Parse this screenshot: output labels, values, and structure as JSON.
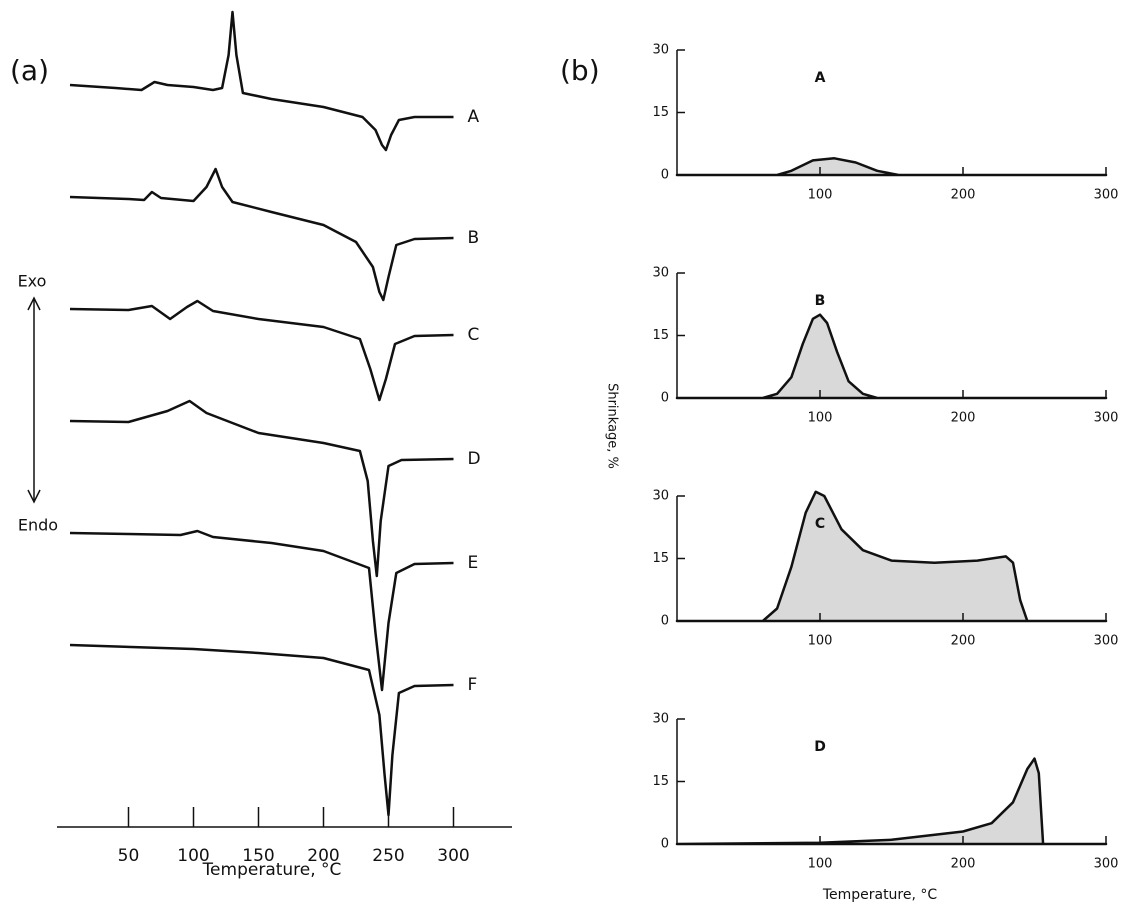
{
  "chart_data": [
    {
      "type": "line",
      "label": "(a)",
      "xlabel": "Temperature, °C",
      "xlim": [
        -5,
        345
      ],
      "xticks": [
        50,
        100,
        150,
        200,
        250,
        300
      ],
      "annotations": [
        "Exo",
        "Endo"
      ],
      "color": "#111111",
      "series": [
        {
          "name": "A",
          "x": [
            5,
            40,
            60,
            70,
            80,
            100,
            115,
            122,
            127,
            130,
            133,
            138,
            160,
            200,
            230,
            240,
            245,
            248,
            252,
            258,
            270,
            300
          ],
          "values": [
            0,
            -3,
            -5,
            3,
            0,
            -2,
            -5,
            -3,
            30,
            73,
            30,
            -8,
            -14,
            -22,
            -32,
            -45,
            -60,
            -65,
            -50,
            -35,
            -32,
            -32
          ]
        },
        {
          "name": "B",
          "x": [
            5,
            50,
            62,
            68,
            75,
            100,
            110,
            117,
            122,
            130,
            160,
            200,
            225,
            238,
            243,
            246,
            250,
            256,
            270,
            300
          ],
          "values": [
            0,
            -2,
            -3,
            5,
            -1,
            -4,
            10,
            28,
            10,
            -5,
            -15,
            -28,
            -45,
            -70,
            -95,
            -103,
            -80,
            -48,
            -42,
            -41
          ]
        },
        {
          "name": "C",
          "x": [
            5,
            50,
            68,
            82,
            95,
            103,
            115,
            150,
            200,
            228,
            236,
            243,
            248,
            255,
            270,
            300
          ],
          "values": [
            0,
            -1,
            3,
            -10,
            2,
            8,
            -2,
            -10,
            -18,
            -30,
            -60,
            -91,
            -70,
            -35,
            -27,
            -26
          ]
        },
        {
          "name": "D",
          "x": [
            5,
            50,
            80,
            97,
            110,
            150,
            200,
            228,
            234,
            238,
            241,
            244,
            250,
            260,
            300
          ],
          "values": [
            0,
            -1,
            10,
            20,
            8,
            -12,
            -22,
            -30,
            -60,
            -120,
            -155,
            -100,
            -45,
            -39,
            -38
          ]
        },
        {
          "name": "E",
          "x": [
            5,
            50,
            90,
            103,
            115,
            160,
            200,
            235,
            240,
            245,
            250,
            256,
            270,
            300
          ],
          "values": [
            0,
            -1,
            -2,
            2,
            -4,
            -10,
            -18,
            -35,
            -100,
            -157,
            -90,
            -40,
            -31,
            -30
          ]
        },
        {
          "name": "F",
          "x": [
            5,
            100,
            150,
            200,
            235,
            243,
            247,
            250,
            253,
            258,
            270,
            300
          ],
          "values": [
            0,
            -4,
            -8,
            -13,
            -25,
            -70,
            -130,
            -170,
            -110,
            -48,
            -41,
            -40
          ]
        }
      ]
    },
    {
      "type": "area",
      "title": "A",
      "label": "(b)",
      "xlim": [
        0,
        300
      ],
      "ylim": [
        0,
        30
      ],
      "xticks": [
        100,
        200,
        300
      ],
      "yticks": [
        0,
        15,
        30
      ],
      "color": "#d9d9d9",
      "x": [
        0,
        70,
        80,
        95,
        110,
        125,
        140,
        155,
        300
      ],
      "values": [
        0,
        0,
        1,
        3.5,
        4,
        3,
        1,
        0,
        0
      ]
    },
    {
      "type": "area",
      "title": "B",
      "xlim": [
        0,
        300
      ],
      "ylim": [
        0,
        30
      ],
      "xticks": [
        100,
        200,
        300
      ],
      "yticks": [
        0,
        15,
        30
      ],
      "color": "#d9d9d9",
      "x": [
        0,
        60,
        70,
        80,
        88,
        95,
        100,
        105,
        112,
        120,
        130,
        140,
        300
      ],
      "values": [
        0,
        0,
        1,
        5,
        13,
        19,
        20,
        18,
        11,
        4,
        1,
        0,
        0
      ]
    },
    {
      "type": "area",
      "title": "C",
      "ylabel": "Shrinkage, %",
      "xlim": [
        0,
        300
      ],
      "ylim": [
        0,
        30
      ],
      "xticks": [
        100,
        200,
        300
      ],
      "yticks": [
        0,
        15,
        30
      ],
      "color": "#d9d9d9",
      "x": [
        0,
        60,
        70,
        80,
        90,
        97,
        103,
        115,
        130,
        150,
        180,
        210,
        230,
        235,
        240,
        245,
        300
      ],
      "values": [
        0,
        0,
        3,
        13,
        26,
        31,
        30,
        22,
        17,
        14.5,
        14,
        14.5,
        15.5,
        14,
        5,
        0,
        0
      ]
    },
    {
      "type": "area",
      "title": "D",
      "xlabel": "Temperature, °C",
      "xlim": [
        0,
        300
      ],
      "ylim": [
        0,
        30
      ],
      "xticks": [
        100,
        200,
        300
      ],
      "yticks": [
        0,
        15,
        30
      ],
      "color": "#d9d9d9",
      "x": [
        0,
        100,
        150,
        200,
        220,
        235,
        245,
        250,
        253,
        256,
        300
      ],
      "values": [
        0,
        0.3,
        1,
        3,
        5,
        10,
        18,
        20.5,
        17,
        0,
        0
      ]
    }
  ]
}
